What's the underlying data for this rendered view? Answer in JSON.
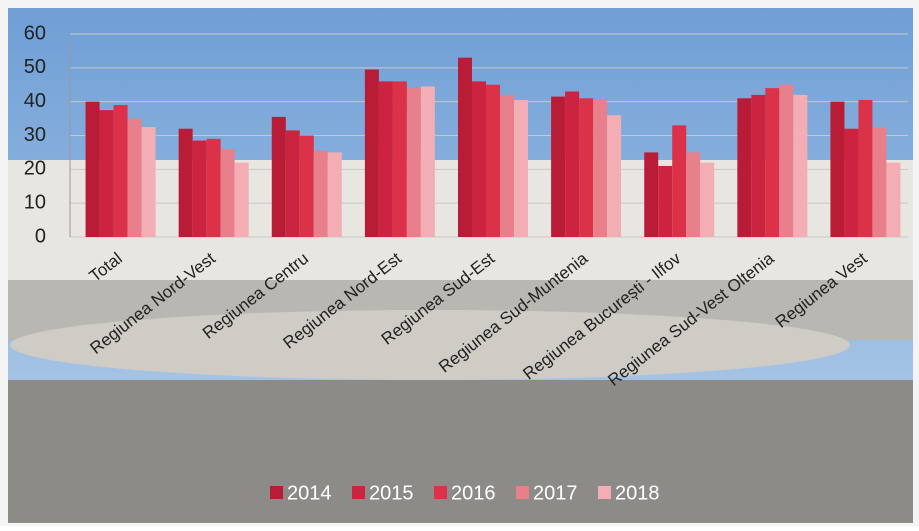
{
  "chart_data": {
    "type": "bar",
    "categories": [
      "Total",
      "Regiunea Nord-Vest",
      "Regiunea Centru",
      "Regiunea Nord-Est",
      "Regiunea Sud-Est",
      "Regiunea Sud-Muntenia",
      "Regiunea București - Ilfov",
      "Regiunea Sud-Vest Oltenia",
      "Regiunea Vest"
    ],
    "series": [
      {
        "name": "2014",
        "color": "#b81c36",
        "values": [
          40,
          32,
          35.5,
          49.5,
          53,
          41.5,
          25,
          41,
          40
        ]
      },
      {
        "name": "2015",
        "color": "#cc2440",
        "values": [
          37.5,
          28.5,
          31.5,
          46,
          46,
          43,
          21,
          42,
          32
        ]
      },
      {
        "name": "2016",
        "color": "#dc3249",
        "values": [
          39,
          29,
          30,
          46,
          45,
          41,
          33,
          44,
          40.5
        ]
      },
      {
        "name": "2017",
        "color": "#e8808b",
        "values": [
          35,
          26,
          25.5,
          44,
          42,
          40.5,
          25,
          45,
          32.5
        ]
      },
      {
        "name": "2018",
        "color": "#f3aeb5",
        "values": [
          32.5,
          22,
          25,
          44.5,
          40.5,
          36,
          22,
          42,
          22
        ]
      }
    ],
    "ylim": [
      0,
      60
    ],
    "yticks": [
      0,
      10,
      20,
      30,
      40,
      50,
      60
    ],
    "grid": true
  }
}
